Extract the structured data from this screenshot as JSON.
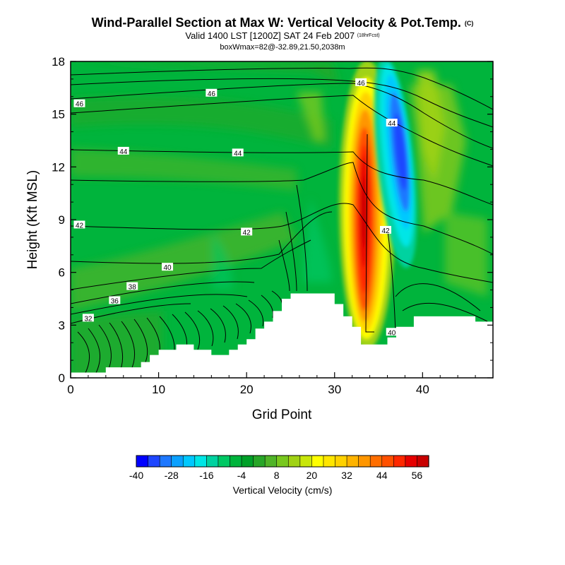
{
  "title": {
    "main": "Wind-Parallel Section at Max W: Vertical Velocity & Pot.Temp.",
    "main_tag": "(C)",
    "valid": "Valid 1400 LST [1200Z] SAT 24 Feb 2007",
    "valid_tag": "(18hrFcst)",
    "box": "boxWmax=82@-32.89,21.50,2038m"
  },
  "colorbar": {
    "label": "Vertical Velocity (cm/s)",
    "tick_labels": [
      "-40",
      "-28",
      "-16",
      "-4",
      "8",
      "20",
      "32",
      "44",
      "56"
    ],
    "colors": [
      "#0000ff",
      "#1e46ff",
      "#1e78ff",
      "#0aa0ff",
      "#00c8ff",
      "#00e6e6",
      "#00d2a0",
      "#00c864",
      "#00b43c",
      "#00a028",
      "#28a628",
      "#50b428",
      "#78c81e",
      "#a0d214",
      "#c8e60a",
      "#ffff00",
      "#ffe600",
      "#ffd200",
      "#ffb400",
      "#ff9600",
      "#ff6e00",
      "#ff5000",
      "#ff2800",
      "#e60000",
      "#c80000"
    ]
  },
  "chart_data": {
    "type": "heatmap",
    "xlabel": "Grid Point",
    "ylabel": "Height (Kft MSL)",
    "xlim": [
      0,
      48
    ],
    "ylim": [
      0,
      18
    ],
    "xticks": [
      0,
      10,
      20,
      30,
      40
    ],
    "yticks": [
      0,
      3,
      6,
      9,
      12,
      15,
      18
    ],
    "colorbar_range": [
      -40,
      60
    ],
    "max_updraft_cm_s": 82,
    "updraft_center": {
      "x": 33,
      "y": 8.5
    },
    "downdraft_center": {
      "x": 37,
      "y": 12
    },
    "terrain": [
      [
        0,
        0.3
      ],
      [
        4,
        0.3
      ],
      [
        4,
        0.6
      ],
      [
        8,
        0.6
      ],
      [
        8,
        0.9
      ],
      [
        9,
        0.9
      ],
      [
        9,
        1.3
      ],
      [
        10,
        1.3
      ],
      [
        10,
        1.6
      ],
      [
        12,
        1.6
      ],
      [
        12,
        1.9
      ],
      [
        14,
        1.9
      ],
      [
        14,
        1.6
      ],
      [
        16,
        1.6
      ],
      [
        16,
        1.3
      ],
      [
        18,
        1.3
      ],
      [
        18,
        1.6
      ],
      [
        19,
        1.6
      ],
      [
        19,
        1.9
      ],
      [
        20,
        1.9
      ],
      [
        20,
        2.2
      ],
      [
        21,
        2.2
      ],
      [
        21,
        2.8
      ],
      [
        22,
        2.8
      ],
      [
        22,
        3.2
      ],
      [
        23,
        3.2
      ],
      [
        23,
        3.8
      ],
      [
        24,
        3.8
      ],
      [
        24,
        4.5
      ],
      [
        25,
        4.5
      ],
      [
        25,
        4.8
      ],
      [
        30,
        4.8
      ],
      [
        30,
        4.2
      ],
      [
        31,
        4.2
      ],
      [
        31,
        3.5
      ],
      [
        32,
        3.5
      ],
      [
        32,
        2.9
      ],
      [
        33,
        2.9
      ],
      [
        33,
        1.9
      ],
      [
        36,
        1.9
      ],
      [
        36,
        2.3
      ],
      [
        37,
        2.3
      ],
      [
        37,
        2.9
      ],
      [
        39,
        2.9
      ],
      [
        39,
        3.5
      ],
      [
        46,
        3.5
      ],
      [
        46,
        3.2
      ],
      [
        48,
        3.2
      ]
    ],
    "isentrope_labels": [
      {
        "text": "46",
        "x": 33,
        "y": 16.8
      },
      {
        "text": "46",
        "x": 1,
        "y": 15.6
      },
      {
        "text": "46",
        "x": 16,
        "y": 16.2
      },
      {
        "text": "44",
        "x": 36.5,
        "y": 14.5
      },
      {
        "text": "44",
        "x": 6,
        "y": 12.9
      },
      {
        "text": "44",
        "x": 19,
        "y": 12.8
      },
      {
        "text": "42",
        "x": 1,
        "y": 8.7
      },
      {
        "text": "42",
        "x": 20,
        "y": 8.3
      },
      {
        "text": "42",
        "x": 35.8,
        "y": 8.4
      },
      {
        "text": "40",
        "x": 11,
        "y": 6.3
      },
      {
        "text": "40",
        "x": 36.5,
        "y": 2.6
      },
      {
        "text": "38",
        "x": 7,
        "y": 5.2
      },
      {
        "text": "36",
        "x": 5,
        "y": 4.4
      },
      {
        "text": "32",
        "x": 2,
        "y": 3.4
      }
    ]
  }
}
